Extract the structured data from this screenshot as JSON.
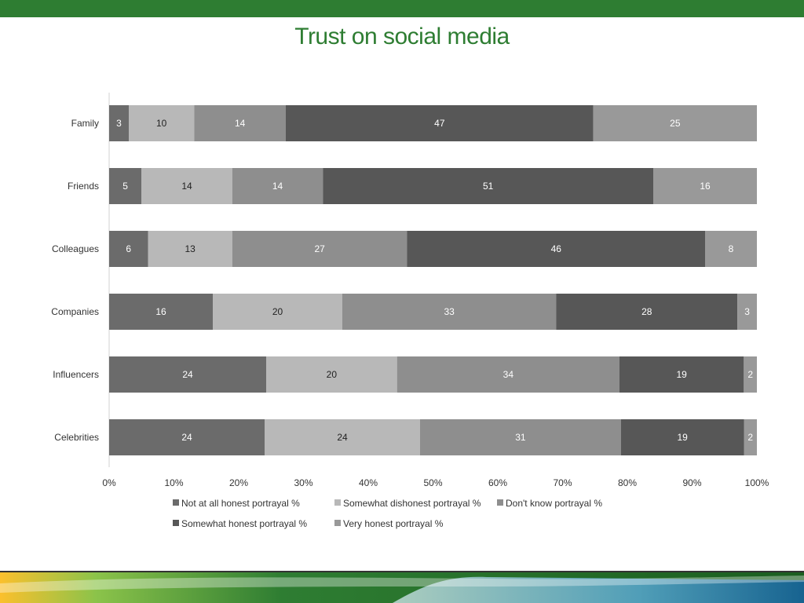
{
  "slide": {
    "title": "Trust on social media"
  },
  "colors": {
    "brand_green": "#2e7d32",
    "series": [
      "#6b6b6b",
      "#b8b8b8",
      "#8e8e8e",
      "#575757",
      "#999999"
    ]
  },
  "chart_data": {
    "type": "bar",
    "orientation": "horizontal",
    "stacked": "percent",
    "title": "Trust on social media",
    "categories": [
      "Family",
      "Friends",
      "Colleagues",
      "Companies",
      "Influencers",
      "Celebrities"
    ],
    "series": [
      {
        "name": "Not at all honest portrayal %",
        "values": [
          3,
          5,
          6,
          16,
          24,
          24
        ]
      },
      {
        "name": "Somewhat dishonest portrayal %",
        "values": [
          10,
          14,
          13,
          20,
          20,
          24
        ]
      },
      {
        "name": "Don't know portrayal %",
        "values": [
          14,
          14,
          27,
          33,
          34,
          31
        ]
      },
      {
        "name": "Somewhat honest portrayal %",
        "values": [
          47,
          51,
          46,
          28,
          19,
          19
        ]
      },
      {
        "name": "Very honest portrayal %",
        "values": [
          25,
          16,
          8,
          3,
          2,
          2
        ]
      }
    ],
    "x_ticks": [
      "0%",
      "10%",
      "20%",
      "30%",
      "40%",
      "50%",
      "60%",
      "70%",
      "80%",
      "90%",
      "100%"
    ],
    "xlim": [
      0,
      100
    ],
    "grid": false,
    "legend": "bottom",
    "data_labels": true
  }
}
